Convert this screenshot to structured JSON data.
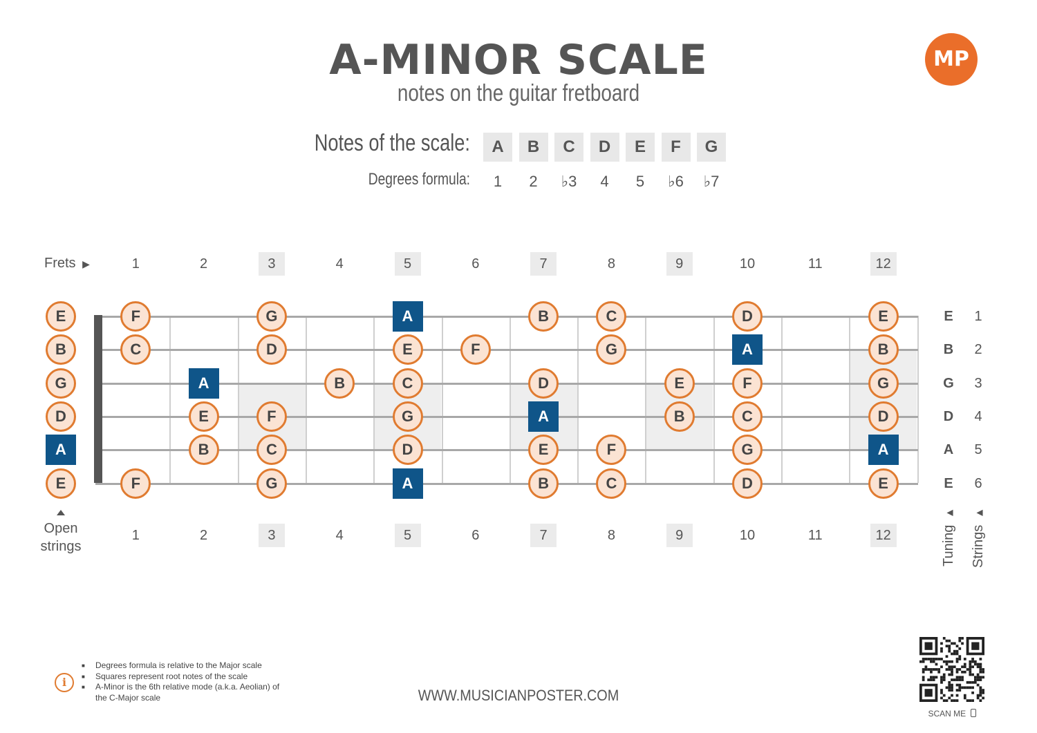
{
  "title": "A-MINOR SCALE",
  "subtitle": "notes on the guitar fretboard",
  "logo_text": "MP",
  "scale": {
    "notes_label": "Notes of the scale:",
    "degrees_label": "Degrees formula:",
    "notes": [
      "A",
      "B",
      "C",
      "D",
      "E",
      "F",
      "G"
    ],
    "degrees": [
      "1",
      "2",
      "♭3",
      "4",
      "5",
      "♭6",
      "♭7"
    ]
  },
  "fretboard": {
    "frets_label": "Frets",
    "fret_numbers": [
      "1",
      "2",
      "3",
      "4",
      "5",
      "6",
      "7",
      "8",
      "9",
      "10",
      "11",
      "12"
    ],
    "highlighted_frets": [
      3,
      5,
      7,
      9,
      12
    ],
    "open_strings_label": "Open strings",
    "tuning_label": "Tuning",
    "strings_label": "Strings",
    "strings": [
      {
        "number": "1",
        "tuning": "E",
        "notes": [
          {
            "fret": 0,
            "note": "E"
          },
          {
            "fret": 1,
            "note": "F"
          },
          {
            "fret": 3,
            "note": "G"
          },
          {
            "fret": 5,
            "note": "A",
            "root": true
          },
          {
            "fret": 7,
            "note": "B"
          },
          {
            "fret": 8,
            "note": "C"
          },
          {
            "fret": 10,
            "note": "D"
          },
          {
            "fret": 12,
            "note": "E"
          }
        ]
      },
      {
        "number": "2",
        "tuning": "B",
        "notes": [
          {
            "fret": 0,
            "note": "B"
          },
          {
            "fret": 1,
            "note": "C"
          },
          {
            "fret": 3,
            "note": "D"
          },
          {
            "fret": 5,
            "note": "E"
          },
          {
            "fret": 6,
            "note": "F"
          },
          {
            "fret": 8,
            "note": "G"
          },
          {
            "fret": 10,
            "note": "A",
            "root": true
          },
          {
            "fret": 12,
            "note": "B"
          }
        ]
      },
      {
        "number": "3",
        "tuning": "G",
        "notes": [
          {
            "fret": 0,
            "note": "G"
          },
          {
            "fret": 2,
            "note": "A",
            "root": true
          },
          {
            "fret": 4,
            "note": "B"
          },
          {
            "fret": 5,
            "note": "C"
          },
          {
            "fret": 7,
            "note": "D"
          },
          {
            "fret": 9,
            "note": "E"
          },
          {
            "fret": 10,
            "note": "F"
          },
          {
            "fret": 12,
            "note": "G"
          }
        ]
      },
      {
        "number": "4",
        "tuning": "D",
        "notes": [
          {
            "fret": 0,
            "note": "D"
          },
          {
            "fret": 2,
            "note": "E"
          },
          {
            "fret": 3,
            "note": "F"
          },
          {
            "fret": 5,
            "note": "G"
          },
          {
            "fret": 7,
            "note": "A",
            "root": true
          },
          {
            "fret": 9,
            "note": "B"
          },
          {
            "fret": 10,
            "note": "C"
          },
          {
            "fret": 12,
            "note": "D"
          }
        ]
      },
      {
        "number": "5",
        "tuning": "A",
        "notes": [
          {
            "fret": 0,
            "note": "A",
            "root": true
          },
          {
            "fret": 2,
            "note": "B"
          },
          {
            "fret": 3,
            "note": "C"
          },
          {
            "fret": 5,
            "note": "D"
          },
          {
            "fret": 7,
            "note": "E"
          },
          {
            "fret": 8,
            "note": "F"
          },
          {
            "fret": 10,
            "note": "G"
          },
          {
            "fret": 12,
            "note": "A",
            "root": true
          }
        ]
      },
      {
        "number": "6",
        "tuning": "E",
        "notes": [
          {
            "fret": 0,
            "note": "E"
          },
          {
            "fret": 1,
            "note": "F"
          },
          {
            "fret": 3,
            "note": "G"
          },
          {
            "fret": 5,
            "note": "A",
            "root": true
          },
          {
            "fret": 7,
            "note": "B"
          },
          {
            "fret": 8,
            "note": "C"
          },
          {
            "fret": 10,
            "note": "D"
          },
          {
            "fret": 12,
            "note": "E"
          }
        ]
      }
    ]
  },
  "footer": {
    "notes": [
      "Degrees formula is relative to the Major scale",
      "Squares represent root notes of the scale",
      "A-Minor is the 6th relative mode (a.k.a. Aeolian) of the C-Major scale"
    ],
    "website": "WWW.MUSICIANPOSTER.COM",
    "scan_label": "SCAN ME"
  }
}
